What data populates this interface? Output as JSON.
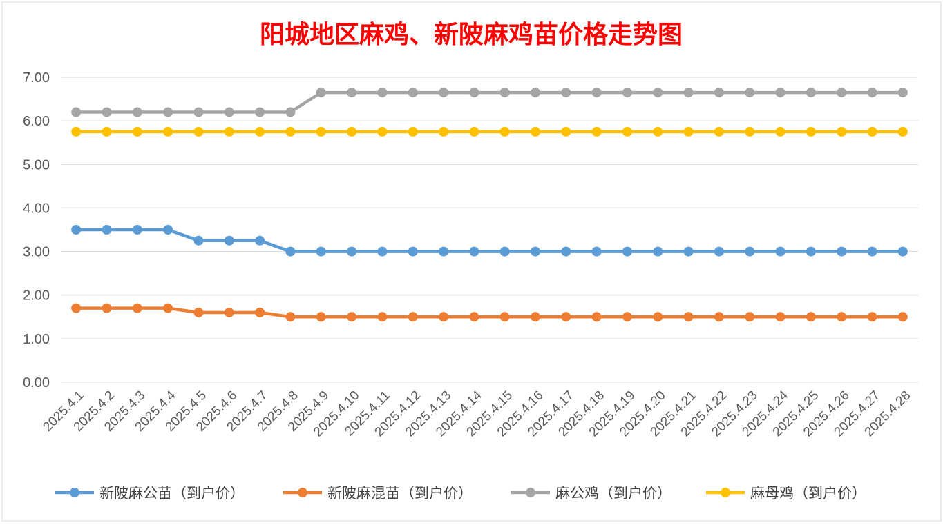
{
  "chart_data": {
    "type": "line",
    "title": "阳城地区麻鸡、新陂麻鸡苗价格走势图",
    "xlabel": "",
    "ylabel": "",
    "ylim": [
      0,
      7
    ],
    "yticks": [
      "0.00",
      "1.00",
      "2.00",
      "3.00",
      "4.00",
      "5.00",
      "6.00",
      "7.00"
    ],
    "grid": true,
    "legend_position": "bottom",
    "categories": [
      "2025.4.1",
      "2025.4.2",
      "2025.4.3",
      "2025.4.4",
      "2025.4.5",
      "2025.4.6",
      "2025.4.7",
      "2025.4.8",
      "2025.4.9",
      "2025.4.10",
      "2025.4.11",
      "2025.4.12",
      "2025.4.13",
      "2025.4.14",
      "2025.4.15",
      "2025.4.16",
      "2025.4.17",
      "2025.4.18",
      "2025.4.19",
      "2025.4.20",
      "2025.4.21",
      "2025.4.22",
      "2025.4.23",
      "2025.4.24",
      "2025.4.25",
      "2025.4.26",
      "2025.4.27",
      "2025.4.28"
    ],
    "series": [
      {
        "name": "新陂麻公苗（到户价）",
        "color": "#5b9bd5",
        "values": [
          3.5,
          3.5,
          3.5,
          3.5,
          3.25,
          3.25,
          3.25,
          3.0,
          3.0,
          3.0,
          3.0,
          3.0,
          3.0,
          3.0,
          3.0,
          3.0,
          3.0,
          3.0,
          3.0,
          3.0,
          3.0,
          3.0,
          3.0,
          3.0,
          3.0,
          3.0,
          3.0,
          3.0
        ]
      },
      {
        "name": "新陂麻混苗（到户价）",
        "color": "#ed7d31",
        "values": [
          1.7,
          1.7,
          1.7,
          1.7,
          1.6,
          1.6,
          1.6,
          1.5,
          1.5,
          1.5,
          1.5,
          1.5,
          1.5,
          1.5,
          1.5,
          1.5,
          1.5,
          1.5,
          1.5,
          1.5,
          1.5,
          1.5,
          1.5,
          1.5,
          1.5,
          1.5,
          1.5,
          1.5
        ]
      },
      {
        "name": "麻公鸡（到户价）",
        "color": "#a5a5a5",
        "values": [
          6.2,
          6.2,
          6.2,
          6.2,
          6.2,
          6.2,
          6.2,
          6.2,
          6.65,
          6.65,
          6.65,
          6.65,
          6.65,
          6.65,
          6.65,
          6.65,
          6.65,
          6.65,
          6.65,
          6.65,
          6.65,
          6.65,
          6.65,
          6.65,
          6.65,
          6.65,
          6.65,
          6.65
        ]
      },
      {
        "name": "麻母鸡（到户价）",
        "color": "#ffc000",
        "values": [
          5.75,
          5.75,
          5.75,
          5.75,
          5.75,
          5.75,
          5.75,
          5.75,
          5.75,
          5.75,
          5.75,
          5.75,
          5.75,
          5.75,
          5.75,
          5.75,
          5.75,
          5.75,
          5.75,
          5.75,
          5.75,
          5.75,
          5.75,
          5.75,
          5.75,
          5.75,
          5.75,
          5.75
        ]
      }
    ]
  }
}
